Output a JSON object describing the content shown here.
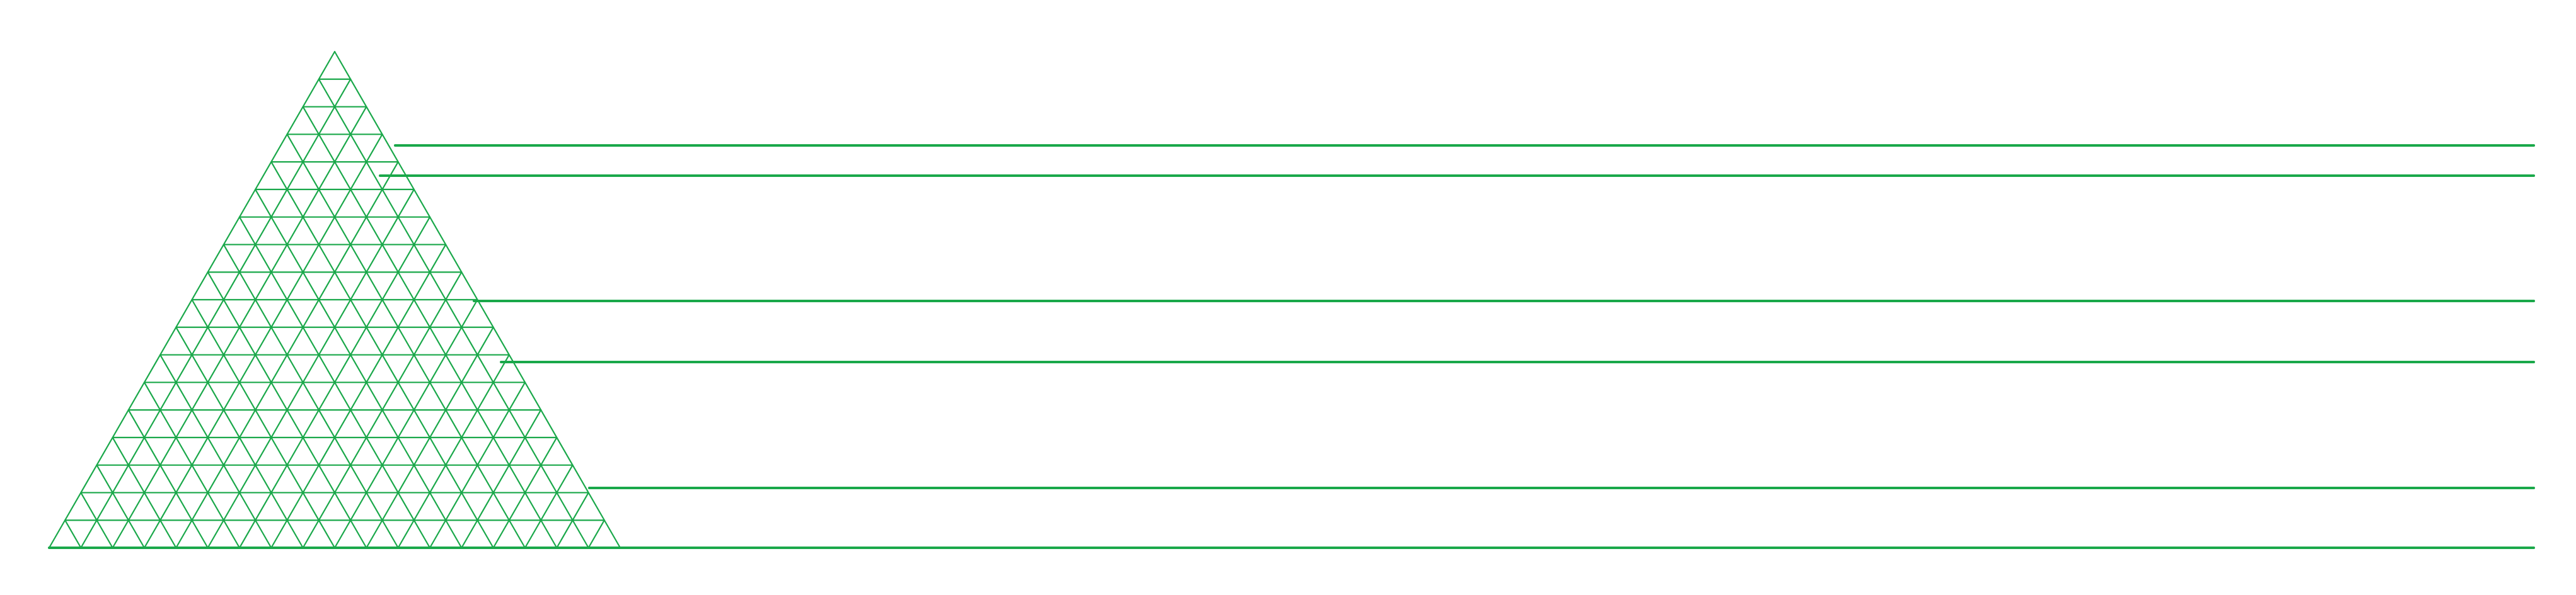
{
  "diagram": {
    "type": "triangular-grid-with-horizontal-lines",
    "grid": {
      "subdivisions": 18,
      "stroke_color": "#1aa84a"
    },
    "horizontal_lines": {
      "count": 6,
      "stroke_color": "#1aa84a"
    },
    "background_color": "#ffffff"
  }
}
